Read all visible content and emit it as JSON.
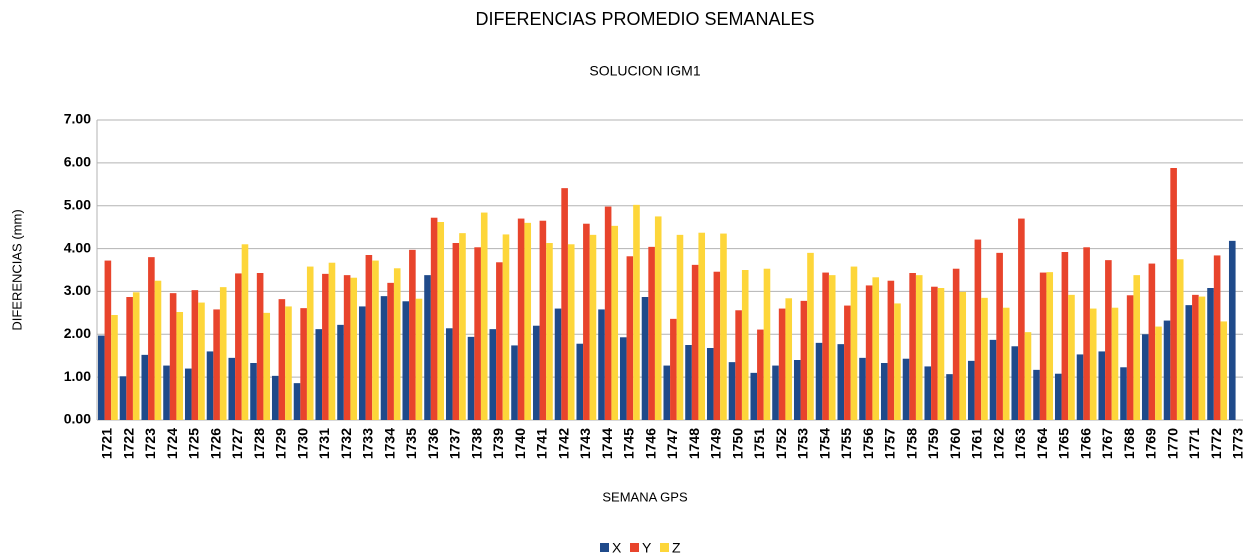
{
  "chart_data": {
    "type": "bar",
    "title": "DIFERENCIAS PROMEDIO SEMANALES",
    "subtitle": "SOLUCION IGM1",
    "x_label": "SEMANA GPS",
    "y_label": "DIFERENCIAS (mm)",
    "categories": [
      "1721",
      "1722",
      "1723",
      "1724",
      "1725",
      "1726",
      "1727",
      "1728",
      "1729",
      "1730",
      "1731",
      "1732",
      "1733",
      "1734",
      "1735",
      "1736",
      "1737",
      "1738",
      "1739",
      "1740",
      "1741",
      "1742",
      "1743",
      "1744",
      "1745",
      "1746",
      "1747",
      "1748",
      "1749",
      "1750",
      "1751",
      "1752",
      "1753",
      "1754",
      "1755",
      "1756",
      "1757",
      "1758",
      "1759",
      "1760",
      "1761",
      "1762",
      "1763",
      "1764",
      "1765",
      "1766",
      "1767",
      "1768",
      "1769",
      "1770",
      "1771",
      "1772",
      "1773"
    ],
    "series": [
      {
        "name": "X",
        "color": "#1f4a8a",
        "values": [
          1.97,
          1.02,
          1.52,
          1.27,
          1.2,
          1.6,
          1.45,
          1.33,
          1.03,
          0.86,
          2.12,
          2.22,
          2.65,
          2.89,
          2.77,
          3.38,
          2.14,
          1.94,
          2.12,
          1.74,
          2.2,
          2.6,
          1.78,
          2.58,
          1.93,
          2.87,
          1.27,
          1.75,
          1.68,
          1.35,
          1.1,
          1.27,
          1.4,
          1.8,
          1.77,
          1.45,
          1.33,
          1.43,
          1.25,
          1.07,
          1.38,
          1.87,
          1.72,
          1.17,
          1.08,
          1.53,
          1.6,
          1.23,
          2.0,
          2.32,
          2.68,
          3.08,
          4.18
        ]
      },
      {
        "name": "Y",
        "color": "#e8442c",
        "values": [
          3.72,
          2.87,
          3.8,
          2.96,
          3.03,
          2.58,
          3.42,
          3.43,
          2.82,
          2.61,
          3.41,
          3.38,
          3.85,
          3.2,
          3.97,
          4.72,
          4.13,
          4.03,
          3.68,
          4.7,
          4.65,
          5.41,
          4.58,
          4.98,
          3.82,
          4.04,
          2.36,
          3.62,
          3.46,
          2.56,
          2.11,
          2.6,
          2.78,
          3.44,
          2.67,
          3.14,
          3.25,
          3.43,
          3.11,
          3.53,
          4.21,
          3.9,
          4.7,
          3.44,
          3.92,
          4.03,
          3.73,
          2.91,
          3.65,
          5.88,
          2.92,
          3.84,
          null
        ]
      },
      {
        "name": "Z",
        "color": "#fdd63a",
        "values": [
          2.45,
          2.98,
          3.25,
          2.52,
          2.74,
          3.1,
          4.1,
          2.5,
          2.65,
          3.58,
          3.67,
          3.32,
          3.72,
          3.54,
          2.83,
          4.62,
          4.36,
          4.84,
          4.33,
          4.6,
          4.13,
          4.1,
          4.32,
          4.53,
          5.02,
          4.75,
          4.32,
          4.37,
          4.35,
          3.5,
          3.53,
          2.84,
          3.9,
          3.38,
          3.58,
          3.33,
          2.72,
          3.38,
          3.08,
          2.99,
          2.85,
          2.62,
          2.05,
          3.45,
          2.92,
          2.6,
          2.62,
          3.38,
          2.18,
          3.75,
          2.88,
          2.3,
          null
        ]
      }
    ],
    "ylim": [
      0,
      7
    ],
    "yticks": [
      {
        "value": 0,
        "label": "0.00"
      },
      {
        "value": 1,
        "label": "1.00"
      },
      {
        "value": 2,
        "label": "2.00"
      },
      {
        "value": 3,
        "label": "3.00"
      },
      {
        "value": 4,
        "label": "4.00"
      },
      {
        "value": 5,
        "label": "5.00"
      },
      {
        "value": 6,
        "label": "6.00"
      },
      {
        "value": 7,
        "label": "7.00"
      }
    ],
    "grid": true,
    "legend": "bottom"
  }
}
